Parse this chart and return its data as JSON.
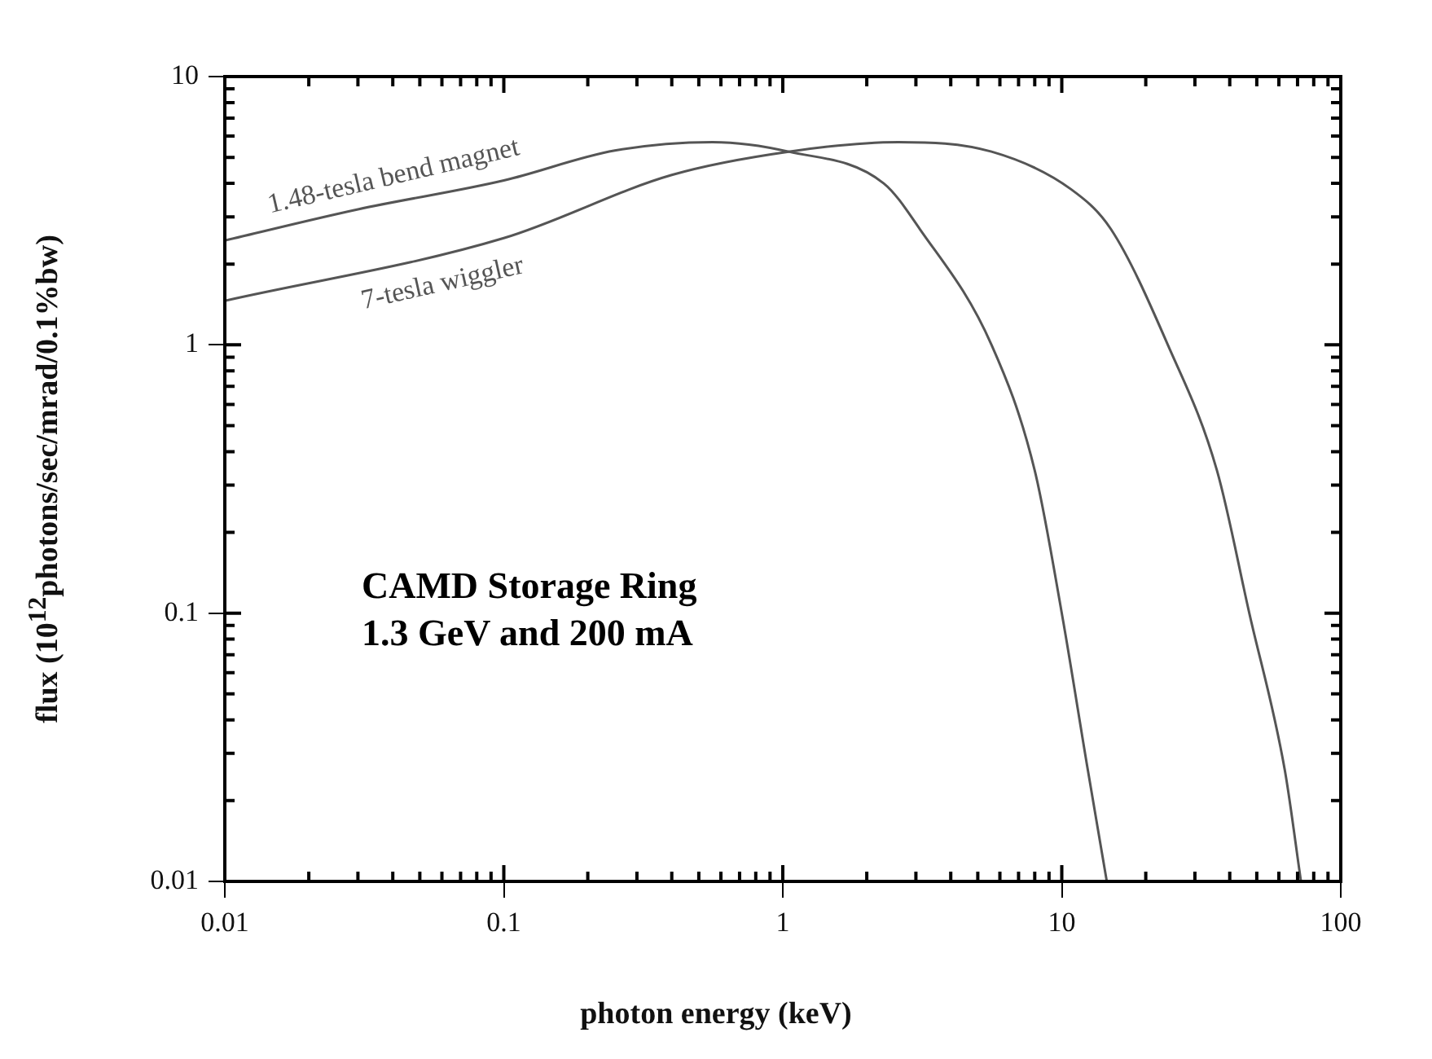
{
  "chart_data": {
    "type": "line",
    "xlabel": "photon energy (keV)",
    "ylabel": "flux (10$^{12}$photons/sec/mrad/0.1%bw)",
    "log": "xy",
    "xlim": [
      0.01,
      100
    ],
    "xticks": [
      0.01,
      0.1,
      1,
      10,
      100
    ],
    "ylim": [
      0.01,
      10
    ],
    "yticks": [
      0.01,
      0.1,
      1,
      10
    ],
    "grid": false,
    "legend": false,
    "marker": "none",
    "line_style": "solid",
    "annotations": [
      "CAMD Storage Ring",
      "1.3 GeV and 200 mA"
    ],
    "series": [
      {
        "name": "1.48-tesla bend magnet",
        "color": "#555555",
        "x": [
          0.01,
          0.03,
          0.1,
          0.25,
          0.56,
          1.05,
          2.3,
          3.1,
          5.6,
          8,
          10,
          12.4,
          14.5
        ],
        "values": [
          2.45,
          3.2,
          4.1,
          5.3,
          5.7,
          5.25,
          4.0,
          2.7,
          1,
          0.34,
          0.1,
          0.026,
          0.01
        ]
      },
      {
        "name": "7-tesla wiggler",
        "color": "#555555",
        "x": [
          0.01,
          0.1,
          0.4,
          1.05,
          2.6,
          5.6,
          10.8,
          15,
          24,
          36,
          47,
          63,
          72
        ],
        "values": [
          1.46,
          2.5,
          4.3,
          5.25,
          5.7,
          5.25,
          3.8,
          2.7,
          1,
          0.34,
          0.1,
          0.026,
          0.01
        ]
      }
    ]
  }
}
